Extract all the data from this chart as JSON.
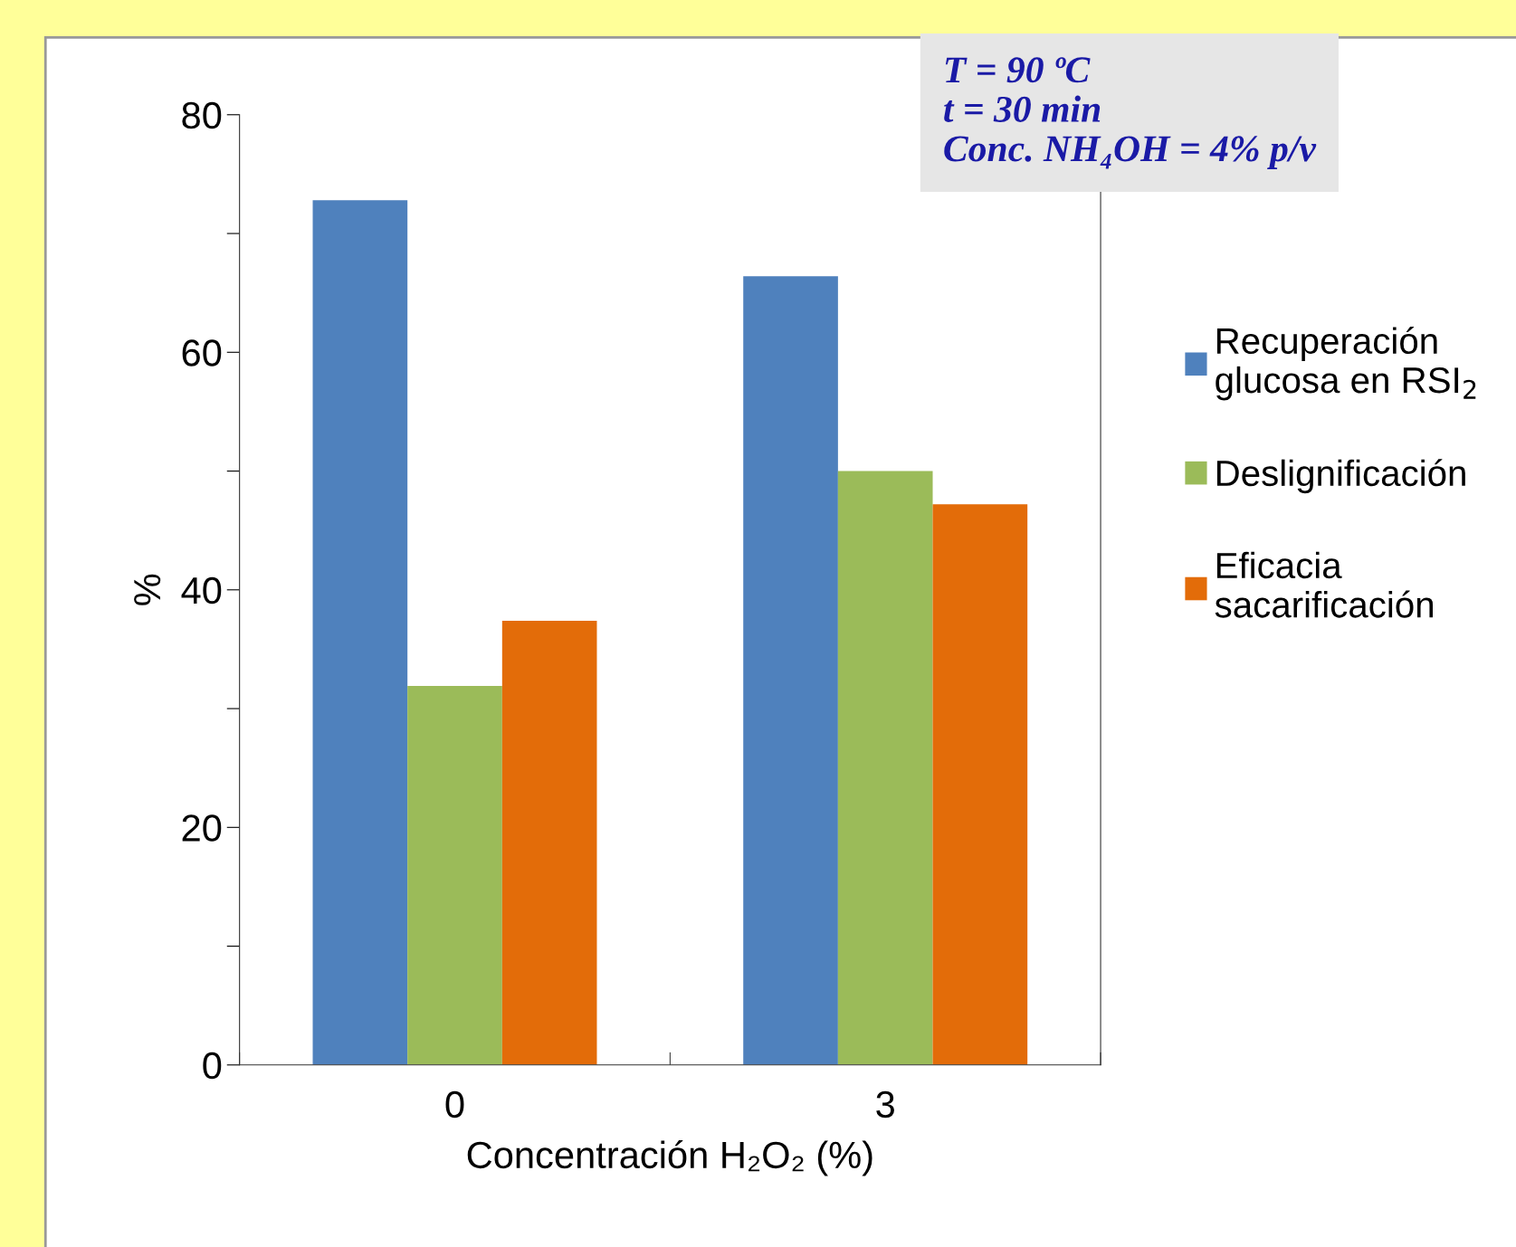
{
  "chart_data": {
    "type": "bar",
    "categories": [
      "0",
      "3"
    ],
    "series": [
      {
        "name": "Recuperación\nglucosa en RSI$_{2}$",
        "color": "#4f81bd",
        "values": [
          72.8,
          66.4
        ]
      },
      {
        "name": "Deslignificación",
        "color": "#9bbb59",
        "values": [
          31.9,
          50.0
        ]
      },
      {
        "name": "Eficacia\nsacarificación",
        "color": "#e36c09",
        "values": [
          37.4,
          47.2
        ]
      }
    ],
    "xlabel": "Concentración H₂O₂ (%)",
    "ylabel": "%",
    "ylim": [
      0,
      80
    ],
    "yticks": [
      0,
      {
        "value": 10,
        "label": null
      },
      20,
      {
        "value": 30,
        "label": null
      },
      40,
      {
        "value": 50,
        "label": null
      },
      60,
      {
        "value": 70,
        "label": null
      },
      80
    ],
    "annotations": [
      "T = 90 ºC\nt = 30 min\nConc. NH₄OH = 4% p/v"
    ],
    "legend": "right",
    "grid": false
  }
}
